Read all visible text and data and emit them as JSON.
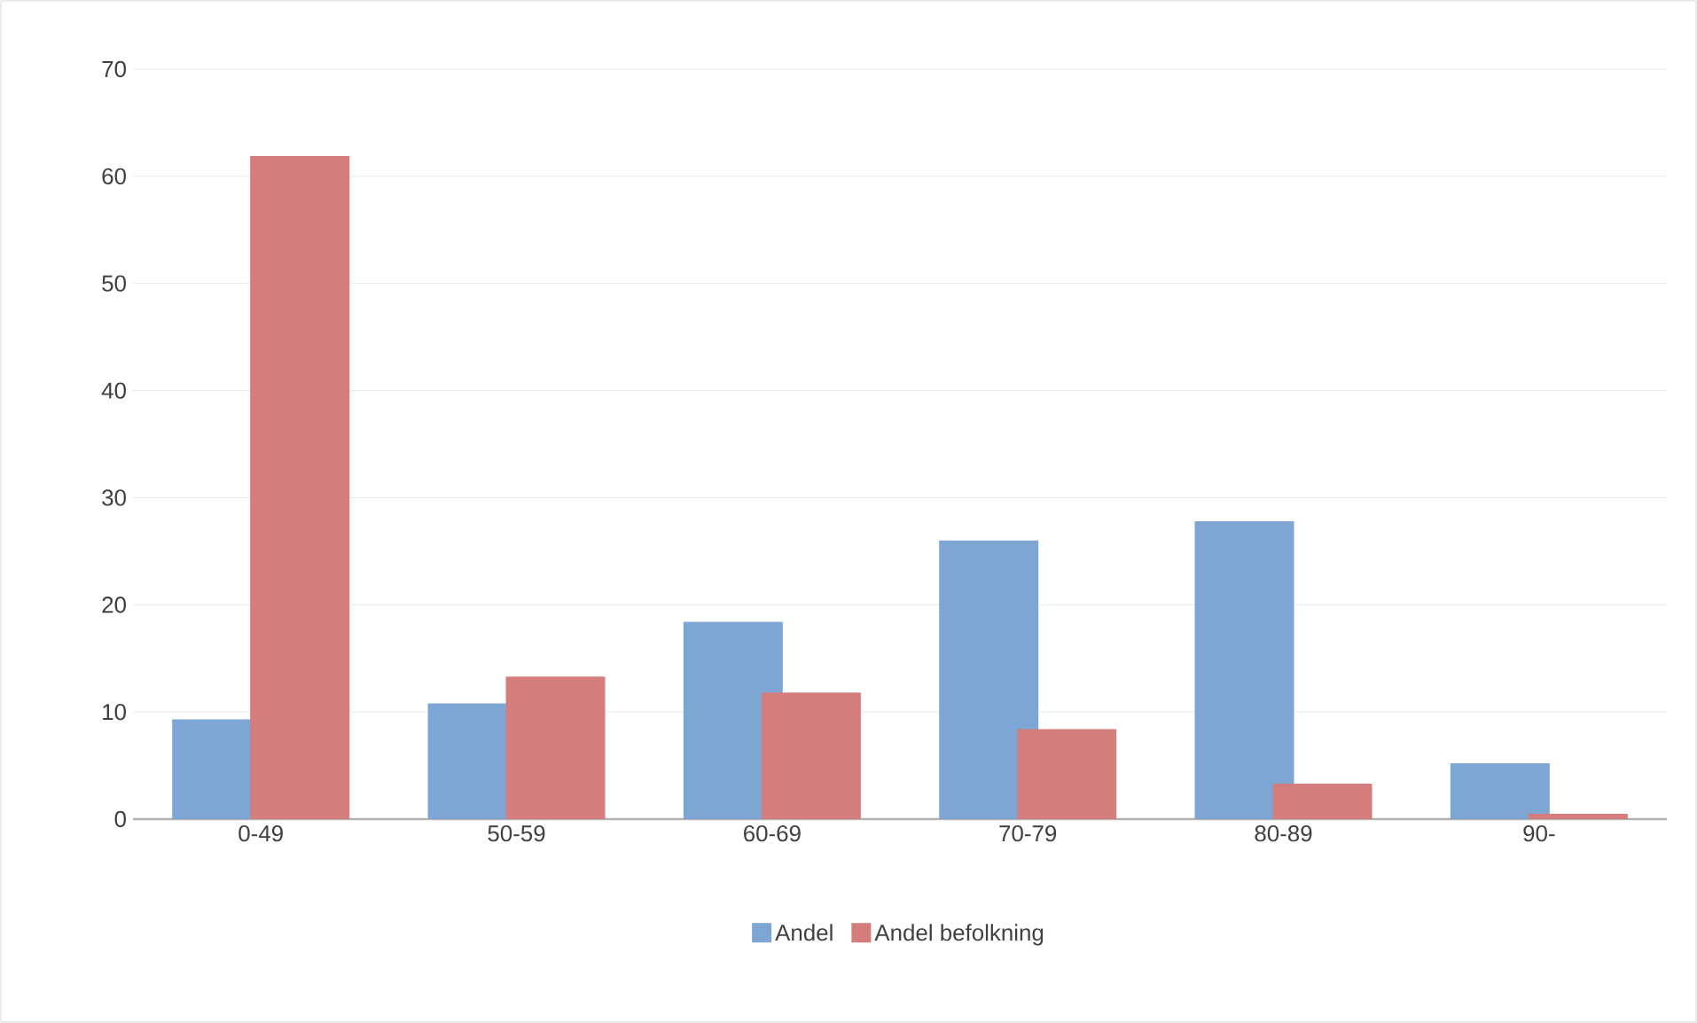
{
  "chart_data": {
    "type": "bar",
    "categories": [
      "0-49",
      "50-59",
      "60-69",
      "70-79",
      "80-89",
      "90-"
    ],
    "series": [
      {
        "name": "Andel",
        "color": "#7da6d4",
        "values": [
          9.3,
          10.8,
          18.4,
          26.0,
          27.8,
          5.2
        ]
      },
      {
        "name": "Andel befolkning",
        "color": "#d57d7d",
        "values": [
          61.9,
          13.3,
          11.8,
          8.4,
          3.3,
          0.5
        ]
      }
    ],
    "ylim": [
      0,
      70
    ],
    "yticks": [
      0,
      10,
      20,
      30,
      40,
      50,
      60,
      70
    ],
    "grid": "y",
    "legend": "bottom"
  }
}
